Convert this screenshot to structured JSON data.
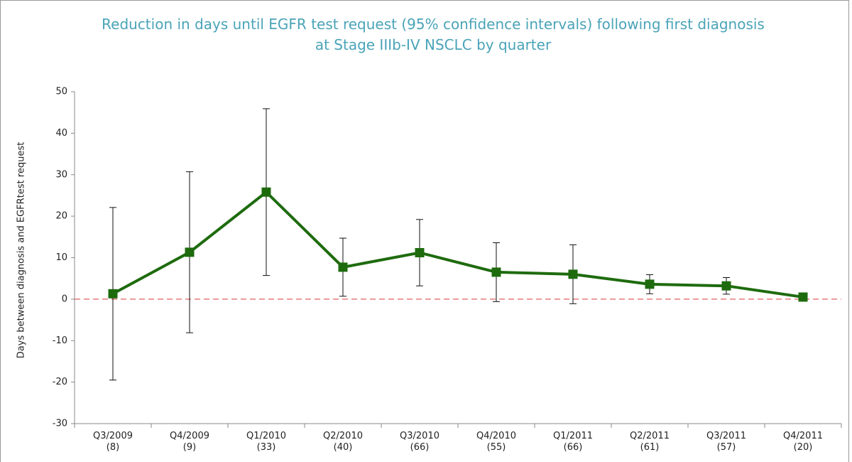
{
  "chart_data": {
    "type": "line",
    "title": "Reduction in days until EGFR test request (95% confidence intervals) following first diagnosis at Stage IIIb-IV NSCLC by quarter",
    "y_label": "Days between diagnosis and EGFRtest request",
    "categories": [
      "Q3/2009\n(8)",
      "Q4/2009\n(9)",
      "Q1/2010\n(33)",
      "Q2/2010\n(40)",
      "Q3/2010\n(66)",
      "Q4/2010\n(55)",
      "Q1/2011\n(66)",
      "Q2/2011\n(61)",
      "Q3/2011\n(57)",
      "Q4/2011\n(20)"
    ],
    "series": [
      {
        "color": "#1e6b0e",
        "values": [
          1.3,
          11.3,
          25.8,
          7.7,
          11.2,
          6.5,
          6.0,
          3.6,
          3.2,
          0.5
        ],
        "errors": [
          20.8,
          19.4,
          20.1,
          7.0,
          8.0,
          7.1,
          7.1,
          2.3,
          2.0,
          0.4
        ]
      }
    ],
    "ylim": [
      -30,
      50
    ],
    "yticks": [
      -30,
      -20,
      -10,
      0,
      10,
      20,
      30,
      40,
      50
    ],
    "reference_line": {
      "value": 0,
      "color": "#e06060",
      "dashed": true
    }
  }
}
